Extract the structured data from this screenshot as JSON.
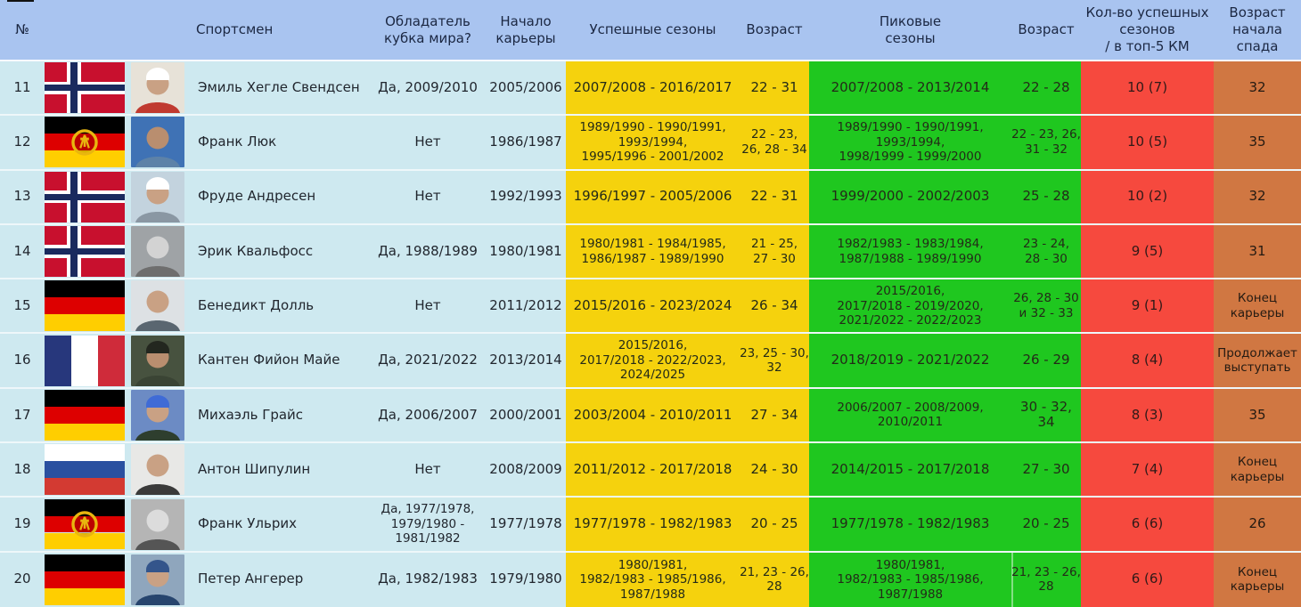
{
  "header": {
    "columns": [
      {
        "key": "num",
        "label": "№"
      },
      {
        "key": "flag",
        "label": ""
      },
      {
        "key": "photo",
        "label": ""
      },
      {
        "key": "name",
        "label": "Спортсмен"
      },
      {
        "key": "wc",
        "label": "Обладатель\nкубка мира?"
      },
      {
        "key": "start",
        "label": "Начало\nкарьеры"
      },
      {
        "key": "success",
        "label": "Успешные сезоны"
      },
      {
        "key": "age1",
        "label": "Возраст"
      },
      {
        "key": "peak",
        "label": "Пиковые\nсезоны"
      },
      {
        "key": "age2",
        "label": "Возраст"
      },
      {
        "key": "count",
        "label": "Кол-во успешных\nсезонов\n/ в топ-5 КМ"
      },
      {
        "key": "decline",
        "label": "Возраст\nначала\nспада"
      }
    ]
  },
  "colors": {
    "header_bg": "#a9c4f0",
    "row_bg": "#cee9f0",
    "successful_seasons_bg": "#f5d20d",
    "peak_seasons_bg": "#1fc71f",
    "count_bg": "#f6493e",
    "decline_bg": "#d07742",
    "header_text": "#1b2742",
    "body_text": "#21262e",
    "row_separator": "rgba(255,255,255,0.65)"
  },
  "flag_colors": {
    "germany": [
      "#000000",
      "#dd0000",
      "#ffce00"
    ],
    "gdr": [
      "#000000",
      "#dd0000",
      "#ffce00"
    ],
    "gdr_emblem": "#e8b60f",
    "russia": [
      "#ffffff",
      "#2a50a0",
      "#d33a32"
    ],
    "france": [
      "#27377c",
      "#ffffff",
      "#cf2b3a"
    ],
    "norway": {
      "field": "#c8102e",
      "cross_outer": "#ffffff",
      "cross_inner": "#1a2a5e"
    }
  },
  "rows": [
    {
      "num": "11",
      "flag": "norway",
      "name": "Эмиль Хегле Свендсен",
      "wc": "Да, 2009/2010",
      "start": "2005/2006",
      "success": "2007/2008 - 2016/2017",
      "age1": "22 - 31",
      "peak": "2007/2008 - 2013/2014",
      "age2": "22 - 28",
      "count": "10 (7)",
      "decline": "32",
      "photo": {
        "bg": "#e7e2d8",
        "head": "#c9a184",
        "body": "#c03a30",
        "hat": "#ffffff"
      }
    },
    {
      "num": "12",
      "flag": "gdr",
      "name": "Франк Люк",
      "wc": "Нет",
      "start": "1986/1987",
      "success": "1989/1990 - 1990/1991,\n1993/1994,\n1995/1996 - 2001/2002",
      "age1": "22 - 23,\n26, 28 - 34",
      "peak": "1989/1990 - 1990/1991,\n1993/1994,\n1998/1999 - 1999/2000",
      "age2": "22 - 23, 26,\n31 - 32",
      "count": "10 (5)",
      "decline": "35",
      "photo": {
        "bg": "#3f72b5",
        "head": "#b98e6f",
        "body": "#5d82a8"
      }
    },
    {
      "num": "13",
      "flag": "norway",
      "name": "Фруде Андресен",
      "wc": "Нет",
      "start": "1992/1993",
      "success": "1996/1997 - 2005/2006",
      "age1": "22 - 31",
      "peak": "1999/2000 - 2002/2003",
      "age2": "25 - 28",
      "count": "10 (2)",
      "decline": "32",
      "photo": {
        "bg": "#c3d3de",
        "head": "#c9a184",
        "body": "#8a97a3",
        "hat": "#ffffff"
      }
    },
    {
      "num": "14",
      "flag": "norway",
      "name": "Эрик Квальфосс",
      "wc": "Да, 1988/1989",
      "start": "1980/1981",
      "success": "1980/1981 - 1984/1985,\n1986/1987 - 1989/1990",
      "age1": "21 - 25,\n27 - 30",
      "peak": "1982/1983 - 1983/1984,\n1987/1988 - 1989/1990",
      "age2": "23 - 24,\n28 - 30",
      "count": "9 (5)",
      "decline": "31",
      "photo": {
        "bg": "#9fa3a6",
        "head": "#d3d3d3",
        "body": "#6e6e6e"
      }
    },
    {
      "num": "15",
      "flag": "germany",
      "name": "Бенедикт Долль",
      "wc": "Нет",
      "start": "2011/2012",
      "success": "2015/2016 - 2023/2024",
      "age1": "26 - 34",
      "peak": "2015/2016,\n2017/2018 - 2019/2020,\n2021/2022 - 2022/2023",
      "age2": "26, 28 - 30\nи 32 - 33",
      "count": "9 (1)",
      "decline": "Конец\nкарьеры",
      "photo": {
        "bg": "#dde1e4",
        "head": "#c9a184",
        "body": "#5a6670"
      }
    },
    {
      "num": "16",
      "flag": "france",
      "name": "Кантен Фийон Майе",
      "wc": "Да, 2021/2022",
      "start": "2013/2014",
      "success": "2015/2016,\n2017/2018 - 2022/2023,\n2024/2025",
      "age1": "23, 25 - 30,\n32",
      "peak": "2018/2019 - 2021/2022",
      "age2": "26 - 29",
      "count": "8 (4)",
      "decline": "Продолжает\nвыступать",
      "photo": {
        "bg": "#47523f",
        "head": "#b98e6f",
        "body": "#3a4434",
        "hat": "#23271f"
      }
    },
    {
      "num": "17",
      "flag": "germany",
      "name": "Михаэль Грайс",
      "wc": "Да, 2006/2007",
      "start": "2000/2001",
      "success": "2003/2004 - 2010/2011",
      "age1": "27 - 34",
      "peak": "2006/2007 - 2008/2009,\n2010/2011",
      "age2": "30 - 32, 34",
      "count": "8 (3)",
      "decline": "35",
      "photo": {
        "bg": "#6c8bc4",
        "head": "#c9a184",
        "body": "#2e3e2e",
        "hat": "#3f6bd6"
      }
    },
    {
      "num": "18",
      "flag": "russia",
      "name": "Антон Шипулин",
      "wc": "Нет",
      "start": "2008/2009",
      "success": "2011/2012 - 2017/2018",
      "age1": "24 - 30",
      "peak": "2014/2015 - 2017/2018",
      "age2": "27 - 30",
      "count": "7 (4)",
      "decline": "Конец\nкарьеры",
      "photo": {
        "bg": "#e8e8e6",
        "head": "#c9a184",
        "body": "#3a3a3a"
      }
    },
    {
      "num": "19",
      "flag": "gdr",
      "name": "Франк Ульрих",
      "wc": "Да, 1977/1978,\n1979/1980 -\n1981/1982",
      "start": "1977/1978",
      "success": "1977/1978 - 1982/1983",
      "age1": "20 - 25",
      "peak": "1977/1978 - 1982/1983",
      "age2": "20 - 25",
      "count": "6 (6)",
      "decline": "26",
      "photo": {
        "bg": "#b5b5b5",
        "head": "#dcdcdc",
        "body": "#555555"
      }
    },
    {
      "num": "20",
      "flag": "germany",
      "name": "Петер Ангерер",
      "wc": "Да, 1982/1983",
      "start": "1979/1980",
      "success": "1980/1981,\n1982/1983 - 1985/1986,\n1987/1988",
      "age1": "21, 23 - 26,\n28",
      "peak": "1980/1981,\n1982/1983 - 1985/1986,\n1987/1988",
      "age2": "21, 23 - 26,\n28",
      "count": "6 (6)",
      "decline": "Конец\nкарьеры",
      "photo": {
        "bg": "#8fa6bd",
        "head": "#c9a184",
        "body": "#27456e",
        "hat": "#34558b"
      }
    }
  ]
}
